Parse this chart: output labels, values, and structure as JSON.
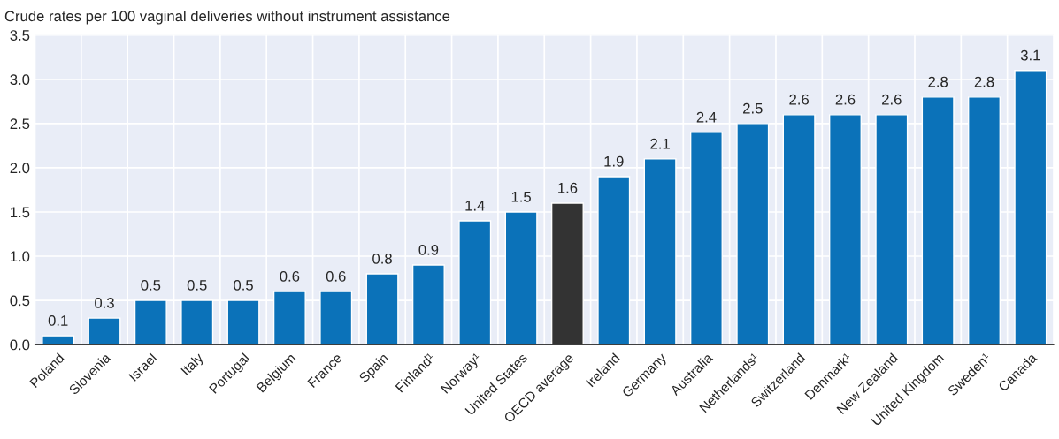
{
  "chart_data": {
    "type": "bar",
    "ylabel": "Crude rates per 100 vaginal deliveries without instrument assistance",
    "categories": [
      "Poland",
      "Slovenia",
      "Israel",
      "Italy",
      "Portugal",
      "Belgium",
      "France",
      "Spain",
      "Finland¹",
      "Norway¹",
      "United States",
      "OECD average",
      "Ireland",
      "Germany",
      "Australia",
      "Netherlands¹",
      "Switzerland",
      "Denmark¹",
      "New Zealand",
      "United Kingdom",
      "Sweden¹",
      "Canada"
    ],
    "values": [
      0.1,
      0.3,
      0.5,
      0.5,
      0.5,
      0.6,
      0.6,
      0.8,
      0.9,
      1.4,
      1.5,
      1.6,
      1.9,
      2.1,
      2.4,
      2.5,
      2.6,
      2.6,
      2.6,
      2.8,
      2.8,
      3.1
    ],
    "colors": [
      "#0b72b9",
      "#0b72b9",
      "#0b72b9",
      "#0b72b9",
      "#0b72b9",
      "#0b72b9",
      "#0b72b9",
      "#0b72b9",
      "#0b72b9",
      "#0b72b9",
      "#0b72b9",
      "#333333",
      "#0b72b9",
      "#0b72b9",
      "#0b72b9",
      "#0b72b9",
      "#0b72b9",
      "#0b72b9",
      "#0b72b9",
      "#0b72b9",
      "#0b72b9",
      "#0b72b9"
    ],
    "ylim": [
      0,
      3.5
    ],
    "yticks": [
      {
        "value": 0,
        "label": "0.0"
      },
      {
        "value": 0.5,
        "label": "0.5"
      },
      {
        "value": 1,
        "label": "1.0"
      },
      {
        "value": 1.5,
        "label": "1.5"
      },
      {
        "value": 2,
        "label": "2.0"
      },
      {
        "value": 2.5,
        "label": "2.5"
      },
      {
        "value": 3,
        "label": "3.0"
      },
      {
        "value": 3.5,
        "label": "3.5"
      }
    ],
    "data_labels": true,
    "grid": true
  }
}
